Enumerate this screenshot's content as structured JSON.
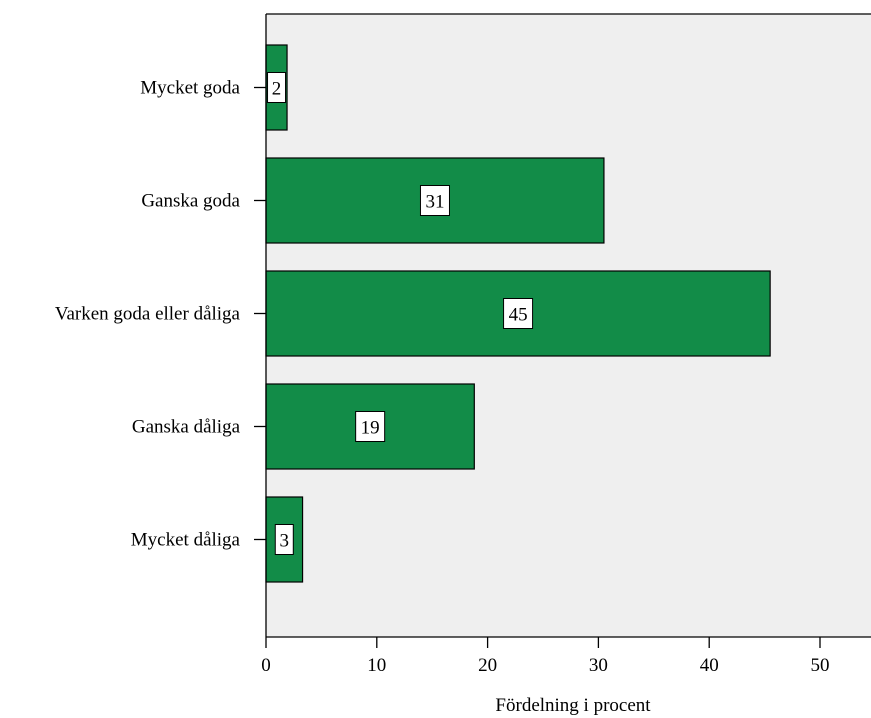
{
  "colors": {
    "bar_fill": "#128c48",
    "plot_background": "#efefef",
    "page_background": "#ffffff",
    "axis": "#000000"
  },
  "chart_data": {
    "type": "bar",
    "orientation": "horizontal",
    "categories": [
      "Mycket goda",
      "Ganska goda",
      "Varken goda eller dåliga",
      "Ganska dåliga",
      "Mycket dåliga"
    ],
    "values": [
      1.9,
      30.5,
      45.5,
      18.8,
      3.3
    ],
    "data_labels": [
      "2",
      "31",
      "45",
      "19",
      "3"
    ],
    "xlabel": "Fördelning i procent",
    "ylabel": "",
    "xlim": [
      0,
      55
    ],
    "xticks": [
      0,
      10,
      20,
      30,
      40,
      50
    ],
    "grid": false,
    "legend": "none"
  }
}
